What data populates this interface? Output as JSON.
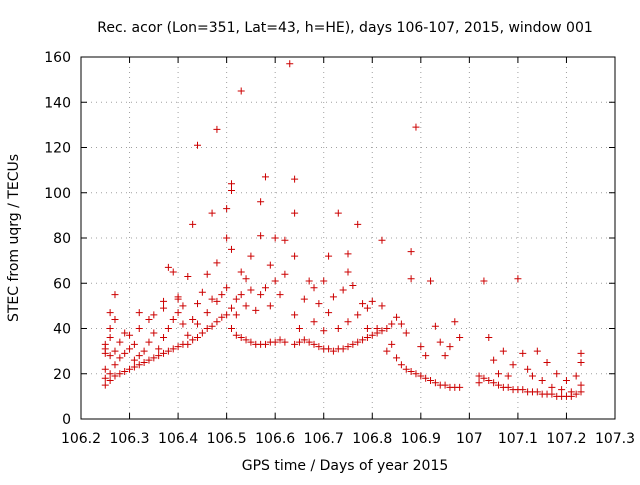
{
  "chart_data": {
    "type": "scatter",
    "title": "Rec. acor (Lon=351, Lat=43, h=HE), days 106-107, 2015, window 001",
    "xlabel": "GPS time / Days of year 2015",
    "ylabel": "STEC from uqrg / TECUs",
    "xlim": [
      106.2,
      107.3
    ],
    "ylim": [
      0,
      160
    ],
    "x_ticks": [
      "106.2",
      "106.3",
      "106.4",
      "106.5",
      "106.6",
      "106.7",
      "106.8",
      "106.9",
      "107",
      "107.1",
      "107.2",
      "107.3"
    ],
    "y_ticks": [
      "0",
      "20",
      "40",
      "60",
      "80",
      "100",
      "120",
      "140",
      "160"
    ],
    "grid": true,
    "legend": "none",
    "marker": "plus",
    "color": "#cc0000",
    "points": [
      [
        106.25,
        15
      ],
      [
        106.25,
        18
      ],
      [
        106.25,
        22
      ],
      [
        106.25,
        29
      ],
      [
        106.25,
        31
      ],
      [
        106.25,
        33
      ],
      [
        106.26,
        17
      ],
      [
        106.26,
        20
      ],
      [
        106.26,
        28
      ],
      [
        106.26,
        36
      ],
      [
        106.26,
        40
      ],
      [
        106.26,
        47
      ],
      [
        106.27,
        19
      ],
      [
        106.27,
        24
      ],
      [
        106.27,
        30
      ],
      [
        106.27,
        44
      ],
      [
        106.27,
        55
      ],
      [
        106.28,
        20
      ],
      [
        106.28,
        27
      ],
      [
        106.28,
        34
      ],
      [
        106.29,
        21
      ],
      [
        106.29,
        29
      ],
      [
        106.29,
        38
      ],
      [
        106.3,
        22
      ],
      [
        106.3,
        31
      ],
      [
        106.3,
        37
      ],
      [
        106.31,
        23
      ],
      [
        106.31,
        26
      ],
      [
        106.31,
        33
      ],
      [
        106.32,
        24
      ],
      [
        106.32,
        28
      ],
      [
        106.32,
        40
      ],
      [
        106.32,
        47
      ],
      [
        106.33,
        25
      ],
      [
        106.33,
        30
      ],
      [
        106.34,
        26
      ],
      [
        106.34,
        34
      ],
      [
        106.34,
        44
      ],
      [
        106.35,
        27
      ],
      [
        106.35,
        38
      ],
      [
        106.35,
        46
      ],
      [
        106.36,
        28
      ],
      [
        106.36,
        31
      ],
      [
        106.37,
        29
      ],
      [
        106.37,
        36
      ],
      [
        106.37,
        49
      ],
      [
        106.37,
        52
      ],
      [
        106.38,
        30
      ],
      [
        106.38,
        40
      ],
      [
        106.38,
        67
      ],
      [
        106.39,
        31
      ],
      [
        106.39,
        44
      ],
      [
        106.39,
        65
      ],
      [
        106.4,
        32
      ],
      [
        106.4,
        47
      ],
      [
        106.4,
        53
      ],
      [
        106.4,
        54
      ],
      [
        106.41,
        33
      ],
      [
        106.41,
        42
      ],
      [
        106.41,
        50
      ],
      [
        106.42,
        33
      ],
      [
        106.42,
        37
      ],
      [
        106.42,
        63
      ],
      [
        106.43,
        35
      ],
      [
        106.43,
        44
      ],
      [
        106.43,
        86
      ],
      [
        106.44,
        36
      ],
      [
        106.44,
        42
      ],
      [
        106.44,
        51
      ],
      [
        106.44,
        121
      ],
      [
        106.45,
        38
      ],
      [
        106.45,
        56
      ],
      [
        106.46,
        40
      ],
      [
        106.46,
        47
      ],
      [
        106.46,
        64
      ],
      [
        106.47,
        41
      ],
      [
        106.47,
        53
      ],
      [
        106.47,
        91
      ],
      [
        106.48,
        43
      ],
      [
        106.48,
        52
      ],
      [
        106.48,
        69
      ],
      [
        106.48,
        128
      ],
      [
        106.49,
        45
      ],
      [
        106.49,
        55
      ],
      [
        106.5,
        46
      ],
      [
        106.5,
        58
      ],
      [
        106.5,
        80
      ],
      [
        106.5,
        93
      ],
      [
        106.51,
        40
      ],
      [
        106.51,
        49
      ],
      [
        106.51,
        75
      ],
      [
        106.51,
        101
      ],
      [
        106.51,
        104
      ],
      [
        106.52,
        37
      ],
      [
        106.52,
        46
      ],
      [
        106.52,
        53
      ],
      [
        106.53,
        36
      ],
      [
        106.53,
        55
      ],
      [
        106.53,
        65
      ],
      [
        106.53,
        145
      ],
      [
        106.54,
        35
      ],
      [
        106.54,
        50
      ],
      [
        106.54,
        62
      ],
      [
        106.55,
        34
      ],
      [
        106.55,
        57
      ],
      [
        106.55,
        72
      ],
      [
        106.56,
        33
      ],
      [
        106.56,
        48
      ],
      [
        106.57,
        33
      ],
      [
        106.57,
        55
      ],
      [
        106.57,
        81
      ],
      [
        106.57,
        96
      ],
      [
        106.58,
        33
      ],
      [
        106.58,
        58
      ],
      [
        106.58,
        107
      ],
      [
        106.59,
        34
      ],
      [
        106.59,
        50
      ],
      [
        106.59,
        68
      ],
      [
        106.6,
        34
      ],
      [
        106.6,
        61
      ],
      [
        106.6,
        80
      ],
      [
        106.61,
        35
      ],
      [
        106.61,
        55
      ],
      [
        106.62,
        34
      ],
      [
        106.62,
        64
      ],
      [
        106.62,
        79
      ],
      [
        106.63,
        157
      ],
      [
        106.64,
        33
      ],
      [
        106.64,
        46
      ],
      [
        106.64,
        72
      ],
      [
        106.64,
        106
      ],
      [
        106.64,
        91
      ],
      [
        106.65,
        34
      ],
      [
        106.65,
        40
      ],
      [
        106.66,
        35
      ],
      [
        106.66,
        53
      ],
      [
        106.67,
        34
      ],
      [
        106.67,
        61
      ],
      [
        106.68,
        33
      ],
      [
        106.68,
        43
      ],
      [
        106.68,
        58
      ],
      [
        106.69,
        32
      ],
      [
        106.69,
        51
      ],
      [
        106.7,
        31
      ],
      [
        106.7,
        39
      ],
      [
        106.7,
        61
      ],
      [
        106.71,
        31
      ],
      [
        106.71,
        47
      ],
      [
        106.71,
        72
      ],
      [
        106.72,
        30
      ],
      [
        106.72,
        54
      ],
      [
        106.73,
        31
      ],
      [
        106.73,
        40
      ],
      [
        106.73,
        91
      ],
      [
        106.74,
        31
      ],
      [
        106.74,
        57
      ],
      [
        106.75,
        32
      ],
      [
        106.75,
        43
      ],
      [
        106.75,
        65
      ],
      [
        106.75,
        73
      ],
      [
        106.76,
        33
      ],
      [
        106.76,
        59
      ],
      [
        106.77,
        34
      ],
      [
        106.77,
        46
      ],
      [
        106.77,
        86
      ],
      [
        106.78,
        35
      ],
      [
        106.78,
        51
      ],
      [
        106.79,
        36
      ],
      [
        106.79,
        40
      ],
      [
        106.79,
        49
      ],
      [
        106.8,
        37
      ],
      [
        106.8,
        52
      ],
      [
        106.81,
        38
      ],
      [
        106.81,
        40
      ],
      [
        106.82,
        39
      ],
      [
        106.82,
        79
      ],
      [
        106.82,
        50
      ],
      [
        106.83,
        40
      ],
      [
        106.83,
        30
      ],
      [
        106.84,
        33
      ],
      [
        106.84,
        42
      ],
      [
        106.85,
        27
      ],
      [
        106.85,
        45
      ],
      [
        106.86,
        24
      ],
      [
        106.86,
        42
      ],
      [
        106.87,
        22
      ],
      [
        106.87,
        38
      ],
      [
        106.88,
        21
      ],
      [
        106.88,
        74
      ],
      [
        106.88,
        62
      ],
      [
        106.89,
        20
      ],
      [
        106.89,
        129
      ],
      [
        106.9,
        19
      ],
      [
        106.9,
        32
      ],
      [
        106.91,
        18
      ],
      [
        106.91,
        28
      ],
      [
        106.92,
        17
      ],
      [
        106.92,
        61
      ],
      [
        106.93,
        16
      ],
      [
        106.93,
        41
      ],
      [
        106.94,
        15
      ],
      [
        106.94,
        34
      ],
      [
        106.95,
        15
      ],
      [
        106.95,
        28
      ],
      [
        106.96,
        14
      ],
      [
        106.96,
        32
      ],
      [
        106.97,
        14
      ],
      [
        106.97,
        43
      ],
      [
        106.98,
        14
      ],
      [
        106.98,
        36
      ],
      [
        107.02,
        19
      ],
      [
        107.02,
        16
      ],
      [
        107.03,
        18
      ],
      [
        107.03,
        61
      ],
      [
        107.04,
        17
      ],
      [
        107.04,
        36
      ],
      [
        107.05,
        16
      ],
      [
        107.05,
        26
      ],
      [
        107.06,
        15
      ],
      [
        107.06,
        20
      ],
      [
        107.07,
        14
      ],
      [
        107.07,
        30
      ],
      [
        107.08,
        14
      ],
      [
        107.08,
        19
      ],
      [
        107.09,
        13
      ],
      [
        107.09,
        24
      ],
      [
        107.1,
        13
      ],
      [
        107.1,
        62
      ],
      [
        107.11,
        13
      ],
      [
        107.11,
        29
      ],
      [
        107.12,
        12
      ],
      [
        107.12,
        22
      ],
      [
        107.13,
        12
      ],
      [
        107.13,
        19
      ],
      [
        107.14,
        12
      ],
      [
        107.14,
        30
      ],
      [
        107.15,
        11
      ],
      [
        107.15,
        17
      ],
      [
        107.16,
        11
      ],
      [
        107.16,
        25
      ],
      [
        107.17,
        11
      ],
      [
        107.17,
        14
      ],
      [
        107.18,
        10
      ],
      [
        107.18,
        20
      ],
      [
        107.19,
        10
      ],
      [
        107.19,
        13
      ],
      [
        107.2,
        10
      ],
      [
        107.2,
        17
      ],
      [
        107.21,
        10
      ],
      [
        107.21,
        12
      ],
      [
        107.22,
        11
      ],
      [
        107.22,
        19
      ],
      [
        107.23,
        12
      ],
      [
        107.23,
        29
      ],
      [
        107.23,
        25
      ],
      [
        107.23,
        15
      ]
    ]
  }
}
